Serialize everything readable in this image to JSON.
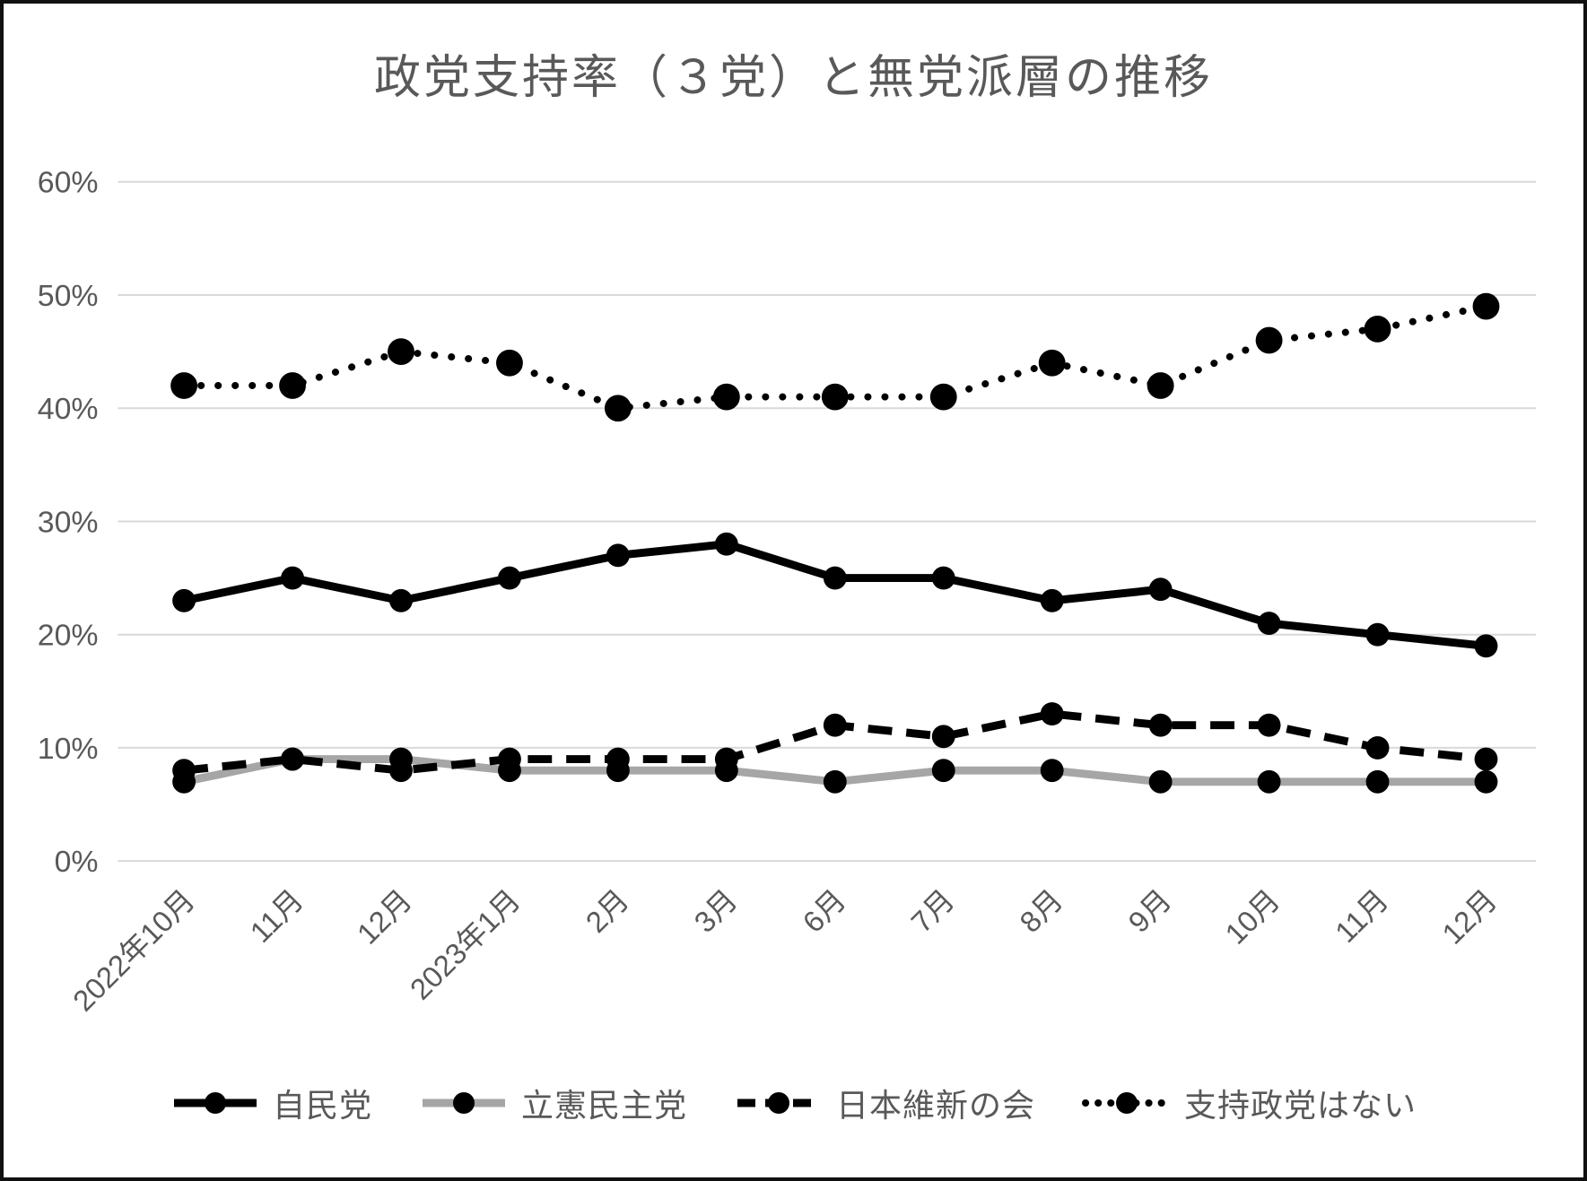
{
  "chart_data": {
    "type": "line",
    "title": "政党支持率（３党）と無党派層の推移",
    "categories": [
      "2022年10月",
      "11月",
      "12月",
      "2023年1月",
      "2月",
      "3月",
      "6月",
      "7月",
      "8月",
      "9月",
      "10月",
      "11月",
      "12月"
    ],
    "series": [
      {
        "id": "cdp",
        "name": "立憲民主党",
        "values": [
          7,
          9,
          9,
          8,
          8,
          8,
          7,
          8,
          8,
          7,
          7,
          7,
          7
        ],
        "line_style": "solid",
        "line_color": "#a6a6a6",
        "marker_color": "#000000"
      },
      {
        "id": "ishin",
        "name": "日本維新の会",
        "values": [
          8,
          9,
          8,
          9,
          9,
          9,
          12,
          11,
          13,
          12,
          12,
          10,
          9
        ],
        "line_style": "dashed",
        "line_color": "#000000",
        "marker_color": "#000000"
      },
      {
        "id": "ldp",
        "name": "自民党",
        "values": [
          23,
          25,
          23,
          25,
          27,
          28,
          25,
          25,
          23,
          24,
          21,
          20,
          19
        ],
        "line_style": "solid",
        "line_color": "#000000",
        "marker_color": "#000000"
      },
      {
        "id": "mutohaso",
        "name": "支持政党はない",
        "values": [
          42,
          42,
          45,
          44,
          40,
          41,
          41,
          41,
          44,
          42,
          46,
          47,
          49
        ],
        "line_style": "dotted",
        "line_color": "#000000",
        "marker_color": "#000000"
      }
    ],
    "legend_order": [
      "ldp",
      "cdp",
      "ishin",
      "mutohaso"
    ],
    "y_ticks": [
      {
        "label": "0%",
        "value": 0
      },
      {
        "label": "10%",
        "value": 10
      },
      {
        "label": "20%",
        "value": 20
      },
      {
        "label": "30%",
        "value": 30
      },
      {
        "label": "40%",
        "value": 40
      },
      {
        "label": "50%",
        "value": 50
      },
      {
        "label": "60%",
        "value": 60
      }
    ],
    "ylim": [
      0,
      60
    ],
    "grid": "on",
    "legend_position": "bottom",
    "colors": {
      "background": "#ffffff",
      "frame_border": "#111111",
      "gridline": "#d9d9d9",
      "axis_text": "#595959",
      "title_text": "#595959"
    }
  }
}
